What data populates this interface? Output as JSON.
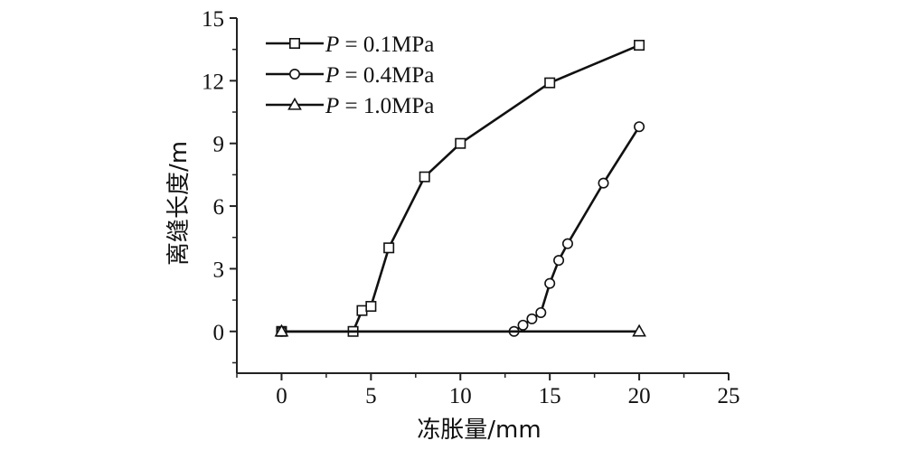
{
  "chart_data": {
    "type": "line",
    "xlabel": "冻胀量/mm",
    "ylabel": "离缝长度/m",
    "xlim": [
      -2.5,
      25
    ],
    "ylim": [
      -2,
      15
    ],
    "xticks": [
      0,
      5,
      10,
      15,
      20,
      25
    ],
    "yticks": [
      0,
      3,
      6,
      9,
      12,
      15
    ],
    "grid": false,
    "legend_position": "top-left",
    "series": [
      {
        "name": "P = 0.1MPa",
        "name_var": "P",
        "name_rest": " = 0.1MPa",
        "marker": "square",
        "x": [
          0,
          4,
          4.5,
          5,
          6,
          8,
          10,
          15,
          20
        ],
        "y": [
          0,
          0,
          1.0,
          1.2,
          4.0,
          7.4,
          9.0,
          11.9,
          13.7
        ]
      },
      {
        "name": "P = 0.4MPa",
        "name_var": "P",
        "name_rest": " = 0.4MPa",
        "marker": "circle",
        "x": [
          0,
          13,
          13.5,
          14,
          14.5,
          15,
          15.5,
          16,
          18,
          20
        ],
        "y": [
          0,
          0,
          0.3,
          0.6,
          0.9,
          2.3,
          3.4,
          4.2,
          7.1,
          9.8
        ]
      },
      {
        "name": "P = 1.0MPa",
        "name_var": "P",
        "name_rest": " = 1.0MPa",
        "marker": "triangle",
        "x": [
          0,
          20
        ],
        "y": [
          0,
          0
        ]
      }
    ]
  }
}
